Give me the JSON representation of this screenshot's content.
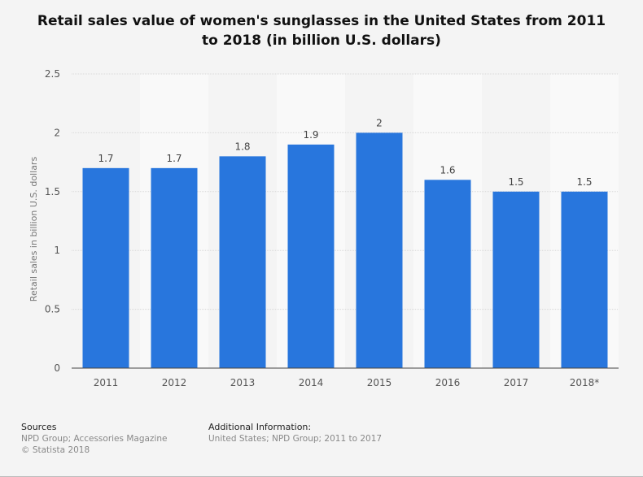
{
  "chart_data": {
    "type": "bar",
    "title": "Retail sales value of women's sunglasses in the United States from 2011 to 2018 (in billion U.S. dollars)",
    "categories": [
      "2011",
      "2012",
      "2013",
      "2014",
      "2015",
      "2016",
      "2017",
      "2018*"
    ],
    "values": [
      1.7,
      1.7,
      1.8,
      1.9,
      2,
      1.6,
      1.5,
      1.5
    ],
    "data_labels": [
      "1.7",
      "1.7",
      "1.8",
      "1.9",
      "2",
      "1.6",
      "1.5",
      "1.5"
    ],
    "xlabel": "",
    "ylabel": "Retail sales in billion U.S. dollars",
    "ylim": [
      0,
      2.5
    ],
    "yticks": [
      "0",
      "0.5",
      "1",
      "1.5",
      "2",
      "2.5"
    ],
    "grid": true,
    "bar_color": "#2876dd"
  },
  "footer": {
    "sources_heading": "Sources",
    "sources_text": "NPD Group; Accessories Magazine",
    "copyright": "© Statista 2018",
    "additional_heading": "Additional Information:",
    "additional_text": "United States; NPD Group; 2011 to 2017"
  }
}
